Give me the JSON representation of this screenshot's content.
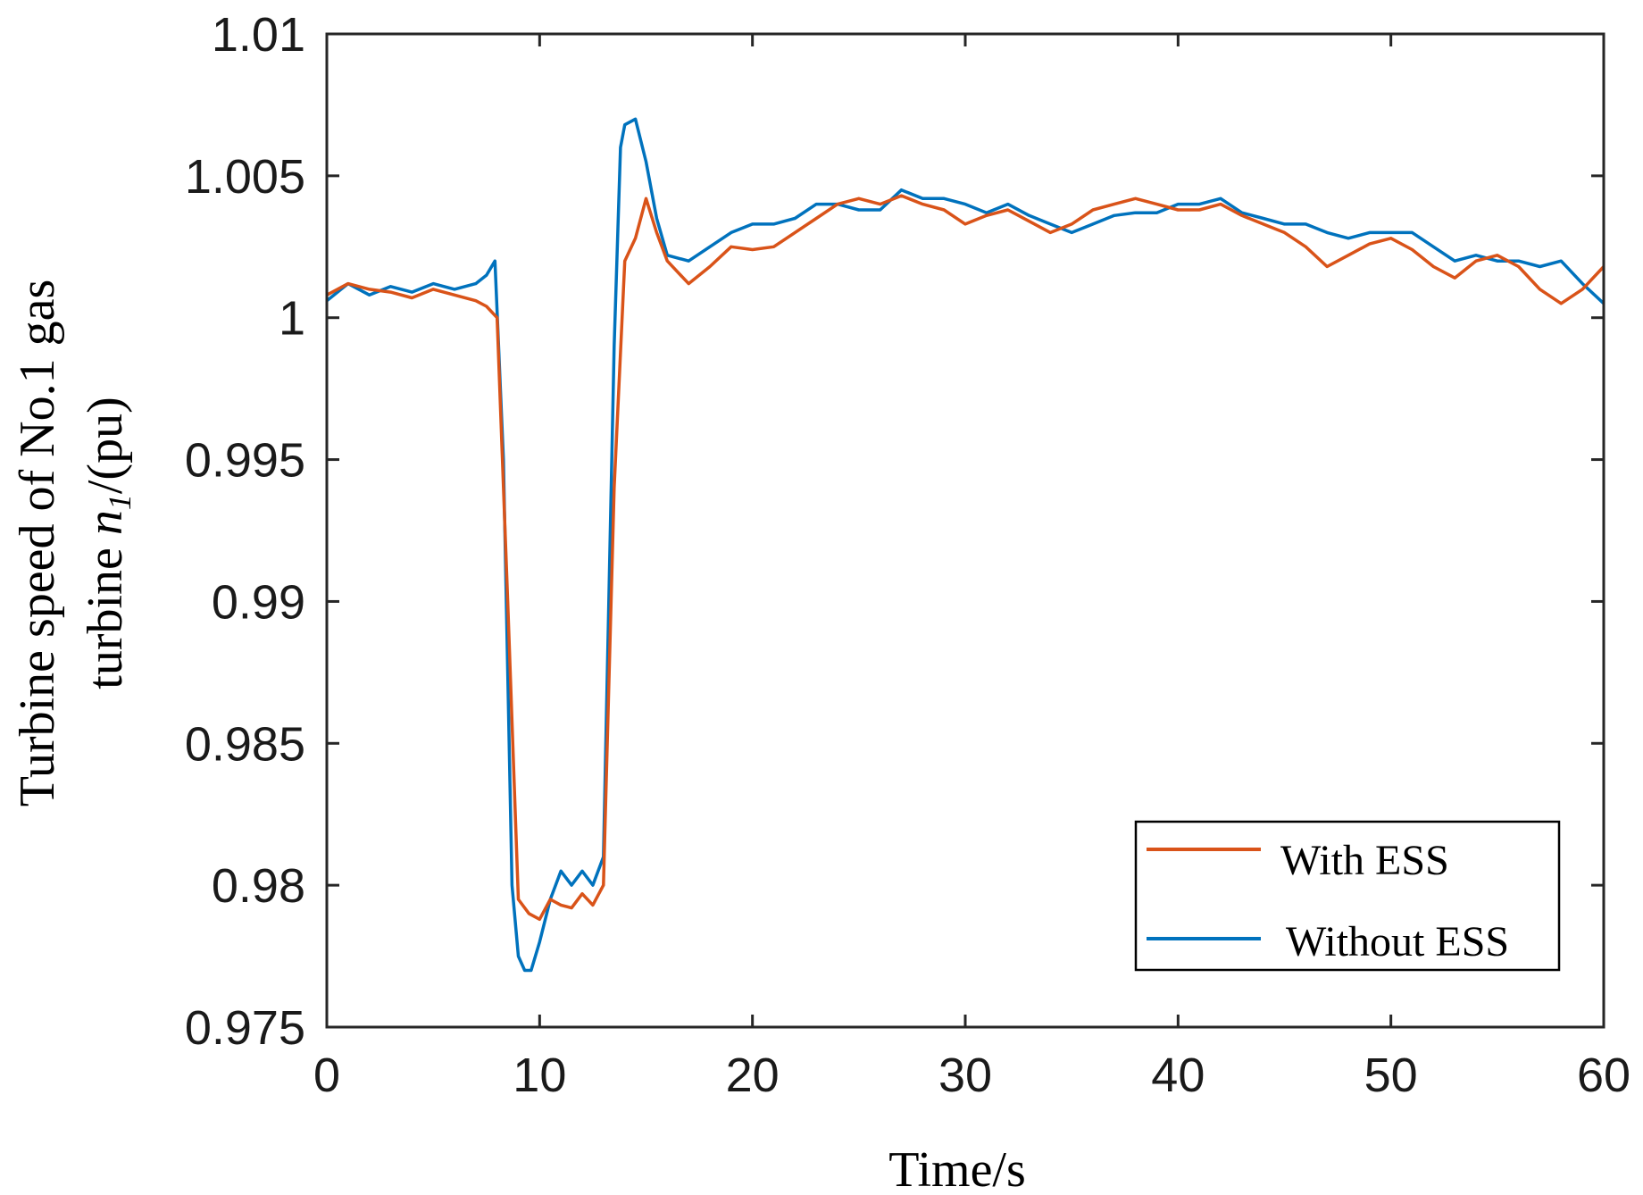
{
  "chart_data": {
    "type": "line",
    "title": "",
    "xlabel": "Time/s",
    "ylabel_line1": "Turbine speed of No.1 gas",
    "ylabel_line2_prefix": "turbine ",
    "ylabel_symbol": "n",
    "ylabel_subscript": "1",
    "ylabel_suffix": "/(pu)",
    "xlim": [
      0,
      60
    ],
    "ylim": [
      0.975,
      1.01
    ],
    "xticks": [
      0,
      10,
      20,
      30,
      40,
      50,
      60
    ],
    "xtick_labels": [
      "0",
      "10",
      "20",
      "30",
      "40",
      "50",
      "60"
    ],
    "yticks": [
      0.975,
      0.98,
      0.985,
      0.99,
      0.995,
      1.0,
      1.005,
      1.01
    ],
    "ytick_labels": [
      "0.975",
      "0.98",
      "0.985",
      "0.99",
      "0.995",
      "1",
      "1.005",
      "1.01"
    ],
    "grid": false,
    "legend_position": "bottom-right",
    "series": [
      {
        "name": "With ESS",
        "color": "#D95319",
        "x": [
          0,
          1,
          2,
          3,
          4,
          5,
          6,
          7,
          7.5,
          8,
          8.5,
          9,
          9.5,
          10,
          10.5,
          11,
          11.5,
          12,
          12.5,
          13,
          13.5,
          14,
          14.5,
          15,
          15.5,
          16,
          17,
          18,
          19,
          20,
          21,
          22,
          23,
          24,
          25,
          26,
          27,
          28,
          29,
          30,
          31,
          32,
          33,
          34,
          35,
          36,
          37,
          38,
          39,
          40,
          41,
          42,
          43,
          44,
          45,
          46,
          47,
          48,
          49,
          50,
          51,
          52,
          53,
          54,
          55,
          56,
          57,
          58,
          59,
          60
        ],
        "y": [
          1.0008,
          1.0012,
          1.001,
          1.0009,
          1.0007,
          1.001,
          1.0008,
          1.0006,
          1.0004,
          1.0,
          0.99,
          0.9795,
          0.979,
          0.9788,
          0.9795,
          0.9793,
          0.9792,
          0.9797,
          0.9793,
          0.98,
          0.994,
          1.002,
          1.0028,
          1.0042,
          1.003,
          1.002,
          1.0012,
          1.0018,
          1.0025,
          1.0024,
          1.0025,
          1.003,
          1.0035,
          1.004,
          1.0042,
          1.004,
          1.0043,
          1.004,
          1.0038,
          1.0033,
          1.0036,
          1.0038,
          1.0034,
          1.003,
          1.0033,
          1.0038,
          1.004,
          1.0042,
          1.004,
          1.0038,
          1.0038,
          1.004,
          1.0036,
          1.0033,
          1.003,
          1.0025,
          1.0018,
          1.0022,
          1.0026,
          1.0028,
          1.0024,
          1.0018,
          1.0014,
          1.002,
          1.0022,
          1.0018,
          1.001,
          1.0005,
          1.001,
          1.0018
        ]
      },
      {
        "name": "Without ESS",
        "color": "#0072BD",
        "x": [
          0,
          1,
          2,
          3,
          4,
          5,
          6,
          7,
          7.5,
          7.9,
          8.3,
          8.7,
          9,
          9.3,
          9.6,
          10,
          10.5,
          11,
          11.5,
          12,
          12.5,
          13,
          13.5,
          13.8,
          14,
          14.5,
          15,
          15.5,
          16,
          17,
          18,
          19,
          20,
          21,
          22,
          23,
          24,
          25,
          26,
          27,
          28,
          29,
          30,
          31,
          32,
          33,
          34,
          35,
          36,
          37,
          38,
          39,
          40,
          41,
          42,
          43,
          44,
          45,
          46,
          47,
          48,
          49,
          50,
          51,
          52,
          53,
          54,
          55,
          56,
          57,
          58,
          59,
          60
        ],
        "y": [
          1.0006,
          1.0012,
          1.0008,
          1.0011,
          1.0009,
          1.0012,
          1.001,
          1.0012,
          1.0015,
          1.002,
          0.995,
          0.98,
          0.9775,
          0.977,
          0.977,
          0.978,
          0.9795,
          0.9805,
          0.98,
          0.9805,
          0.98,
          0.981,
          0.999,
          1.006,
          1.0068,
          1.007,
          1.0055,
          1.0035,
          1.0022,
          1.002,
          1.0025,
          1.003,
          1.0033,
          1.0033,
          1.0035,
          1.004,
          1.004,
          1.0038,
          1.0038,
          1.0045,
          1.0042,
          1.0042,
          1.004,
          1.0037,
          1.004,
          1.0036,
          1.0033,
          1.003,
          1.0033,
          1.0036,
          1.0037,
          1.0037,
          1.004,
          1.004,
          1.0042,
          1.0037,
          1.0035,
          1.0033,
          1.0033,
          1.003,
          1.0028,
          1.003,
          1.003,
          1.003,
          1.0025,
          1.002,
          1.0022,
          1.002,
          1.002,
          1.0018,
          1.002,
          1.0012,
          1.0005
        ]
      }
    ]
  }
}
